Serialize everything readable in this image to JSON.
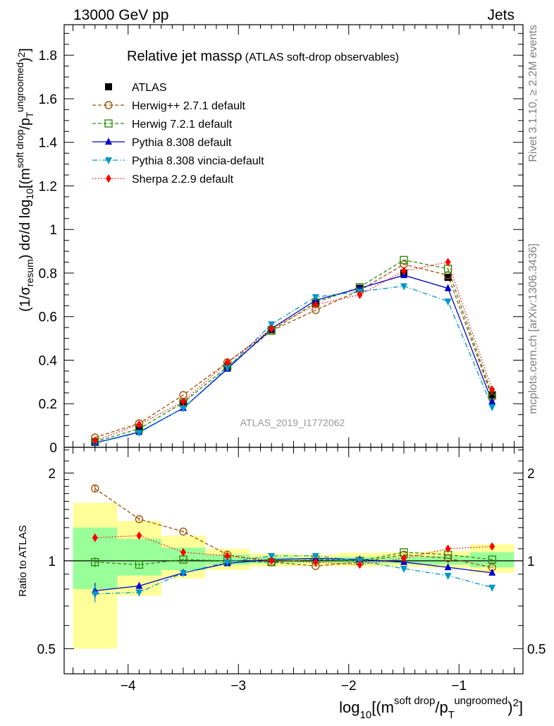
{
  "header": {
    "left": "13000 GeV pp",
    "right": "Jets"
  },
  "side_labels": {
    "rivet": "Rivet 3.1.10, ≥ 2.2M events",
    "mcplots": "mcplots.cern.ch [arXiv:1306.3436]"
  },
  "chart_data": [
    {
      "type": "line",
      "panel": "main",
      "title": "Relative jet massρ",
      "subtitle": "(ATLAS soft-drop observables)",
      "analysis_label": "ATLAS_2019_I1772062",
      "ylabel": "(1/σresum) dσ/d log10[(m soft drop/pT ungroomed)2]",
      "ylim": [
        0,
        1.94
      ],
      "xlim": [
        -4.58,
        -0.42
      ],
      "yticks": [
        0,
        0.2,
        0.4,
        0.6,
        0.8,
        1,
        1.2,
        1.4,
        1.6,
        1.8
      ],
      "ytick_labels": [
        "0",
        "0.2",
        "0.4",
        "0.6",
        "0.8",
        "1",
        "1.2",
        "1.4",
        "1.6",
        "1.8"
      ],
      "x": [
        -4.3,
        -3.9,
        -3.5,
        -3.1,
        -2.7,
        -2.3,
        -1.9,
        -1.5,
        -1.1,
        -0.7
      ],
      "series": [
        {
          "name": "ATLAS",
          "color": "#000000",
          "style": "data",
          "marker": "square-filled",
          "values": [
            0.025,
            0.09,
            0.2,
            0.37,
            0.54,
            0.66,
            0.73,
            0.8,
            0.78,
            0.24
          ]
        },
        {
          "name": "Herwig++ 2.7.1 default",
          "color": "#a05000",
          "style": "dashed",
          "marker": "circle-open",
          "values": [
            0.045,
            0.11,
            0.24,
            0.39,
            0.535,
            0.63,
            0.72,
            0.84,
            0.79,
            0.23
          ]
        },
        {
          "name": "Herwig 7.2.1 default",
          "color": "#2e8b10",
          "style": "dashed",
          "marker": "square-open",
          "values": [
            0.025,
            0.085,
            0.205,
            0.37,
            0.535,
            0.665,
            0.735,
            0.86,
            0.82,
            0.24
          ]
        },
        {
          "name": "Pythia 8.308 default",
          "color": "#0000cc",
          "style": "solid",
          "marker": "triangle-up",
          "values": [
            0.02,
            0.07,
            0.18,
            0.36,
            0.545,
            0.675,
            0.73,
            0.79,
            0.73,
            0.21
          ]
        },
        {
          "name": "Pythia 8.308 vincia-default",
          "color": "#0097c7",
          "style": "dashdot",
          "marker": "triangle-down",
          "values": [
            0.019,
            0.067,
            0.18,
            0.365,
            0.565,
            0.69,
            0.715,
            0.74,
            0.67,
            0.185
          ]
        },
        {
          "name": "Sherpa 2.2.9 default",
          "color": "#ff0000",
          "style": "dotted",
          "marker": "diamond",
          "values": [
            0.03,
            0.105,
            0.21,
            0.39,
            0.545,
            0.655,
            0.7,
            0.81,
            0.85,
            0.265
          ]
        }
      ]
    },
    {
      "type": "line",
      "panel": "ratio",
      "ylabel": "Ratio to ATLAS",
      "xlabel": "log10[(m soft drop/pT ungroomed)2]",
      "scale": "log",
      "ylim": [
        0.41,
        2.45
      ],
      "xticks": [
        -4,
        -3,
        -2,
        -1
      ],
      "xtick_labels": [
        "−4",
        "−3",
        "−2",
        "−1"
      ],
      "yticks": [
        0.5,
        1,
        2
      ],
      "ytick_labels": [
        "0.5",
        "1",
        "2"
      ],
      "bins": [
        [
          -4.5,
          -4.1
        ],
        [
          -4.1,
          -3.7
        ],
        [
          -3.7,
          -3.3
        ],
        [
          -3.3,
          -2.9
        ],
        [
          -2.9,
          -2.5
        ],
        [
          -2.5,
          -2.1
        ],
        [
          -2.1,
          -1.7
        ],
        [
          -1.7,
          -1.3
        ],
        [
          -1.3,
          -0.9
        ],
        [
          -0.9,
          -0.5
        ]
      ],
      "uncertainty_bands": {
        "outer": {
          "color": "#ffff99",
          "low": [
            0.5,
            0.76,
            0.87,
            0.93,
            0.955,
            0.96,
            0.955,
            0.955,
            0.945,
            0.91
          ],
          "high": [
            1.58,
            1.37,
            1.22,
            1.1,
            1.06,
            1.05,
            1.065,
            1.07,
            1.08,
            1.14
          ]
        },
        "inner": {
          "color": "#99ff99",
          "low": [
            0.8,
            0.89,
            0.93,
            0.97,
            0.98,
            0.985,
            0.98,
            0.98,
            0.97,
            0.95
          ],
          "high": [
            1.3,
            1.19,
            1.11,
            1.05,
            1.03,
            1.02,
            1.03,
            1.035,
            1.04,
            1.07
          ]
        }
      },
      "series": [
        {
          "name": "Herwig++ 2.7.1 default",
          "color": "#a05000",
          "style": "dashed",
          "marker": "circle-open",
          "values": [
            1.77,
            1.39,
            1.26,
            1.05,
            0.99,
            0.96,
            0.99,
            1.05,
            1.02,
            0.95
          ],
          "err": [
            0.05,
            0.02,
            0.01,
            0.01,
            0.005,
            0.005,
            0.005,
            0.005,
            0.005,
            0.005
          ]
        },
        {
          "name": "Herwig 7.2.1 default",
          "color": "#2e8b10",
          "style": "dashed",
          "marker": "square-open",
          "values": [
            0.99,
            0.97,
            1.01,
            1.0,
            0.99,
            1.01,
            1.0,
            1.07,
            1.05,
            1.01
          ],
          "err": [
            0.04,
            0.015,
            0.01,
            0.005,
            0.005,
            0.005,
            0.005,
            0.005,
            0.005,
            0.005
          ]
        },
        {
          "name": "Pythia 8.308 default",
          "color": "#0000cc",
          "style": "solid",
          "marker": "triangle-up",
          "values": [
            0.79,
            0.82,
            0.91,
            0.98,
            1.01,
            1.02,
            1.01,
            0.99,
            0.95,
            0.91
          ],
          "err": [
            0.05,
            0.02,
            0.01,
            0.005,
            0.005,
            0.005,
            0.005,
            0.005,
            0.005,
            0.005
          ]
        },
        {
          "name": "Pythia 8.308 vincia-default",
          "color": "#0097c7",
          "style": "dashdot",
          "marker": "triangle-down",
          "values": [
            0.77,
            0.78,
            0.91,
            0.99,
            1.04,
            1.04,
            1.0,
            0.94,
            0.89,
            0.81
          ],
          "err": [
            0.05,
            0.02,
            0.01,
            0.005,
            0.005,
            0.005,
            0.005,
            0.005,
            0.005,
            0.005
          ]
        },
        {
          "name": "Sherpa 2.2.9 default",
          "color": "#ff0000",
          "style": "dotted",
          "marker": "diamond",
          "values": [
            1.2,
            1.22,
            1.07,
            1.04,
            1.0,
            0.99,
            0.97,
            1.02,
            1.1,
            1.12
          ],
          "err": [
            0.04,
            0.015,
            0.01,
            0.005,
            0.005,
            0.005,
            0.005,
            0.005,
            0.005,
            0.005
          ]
        }
      ]
    }
  ]
}
